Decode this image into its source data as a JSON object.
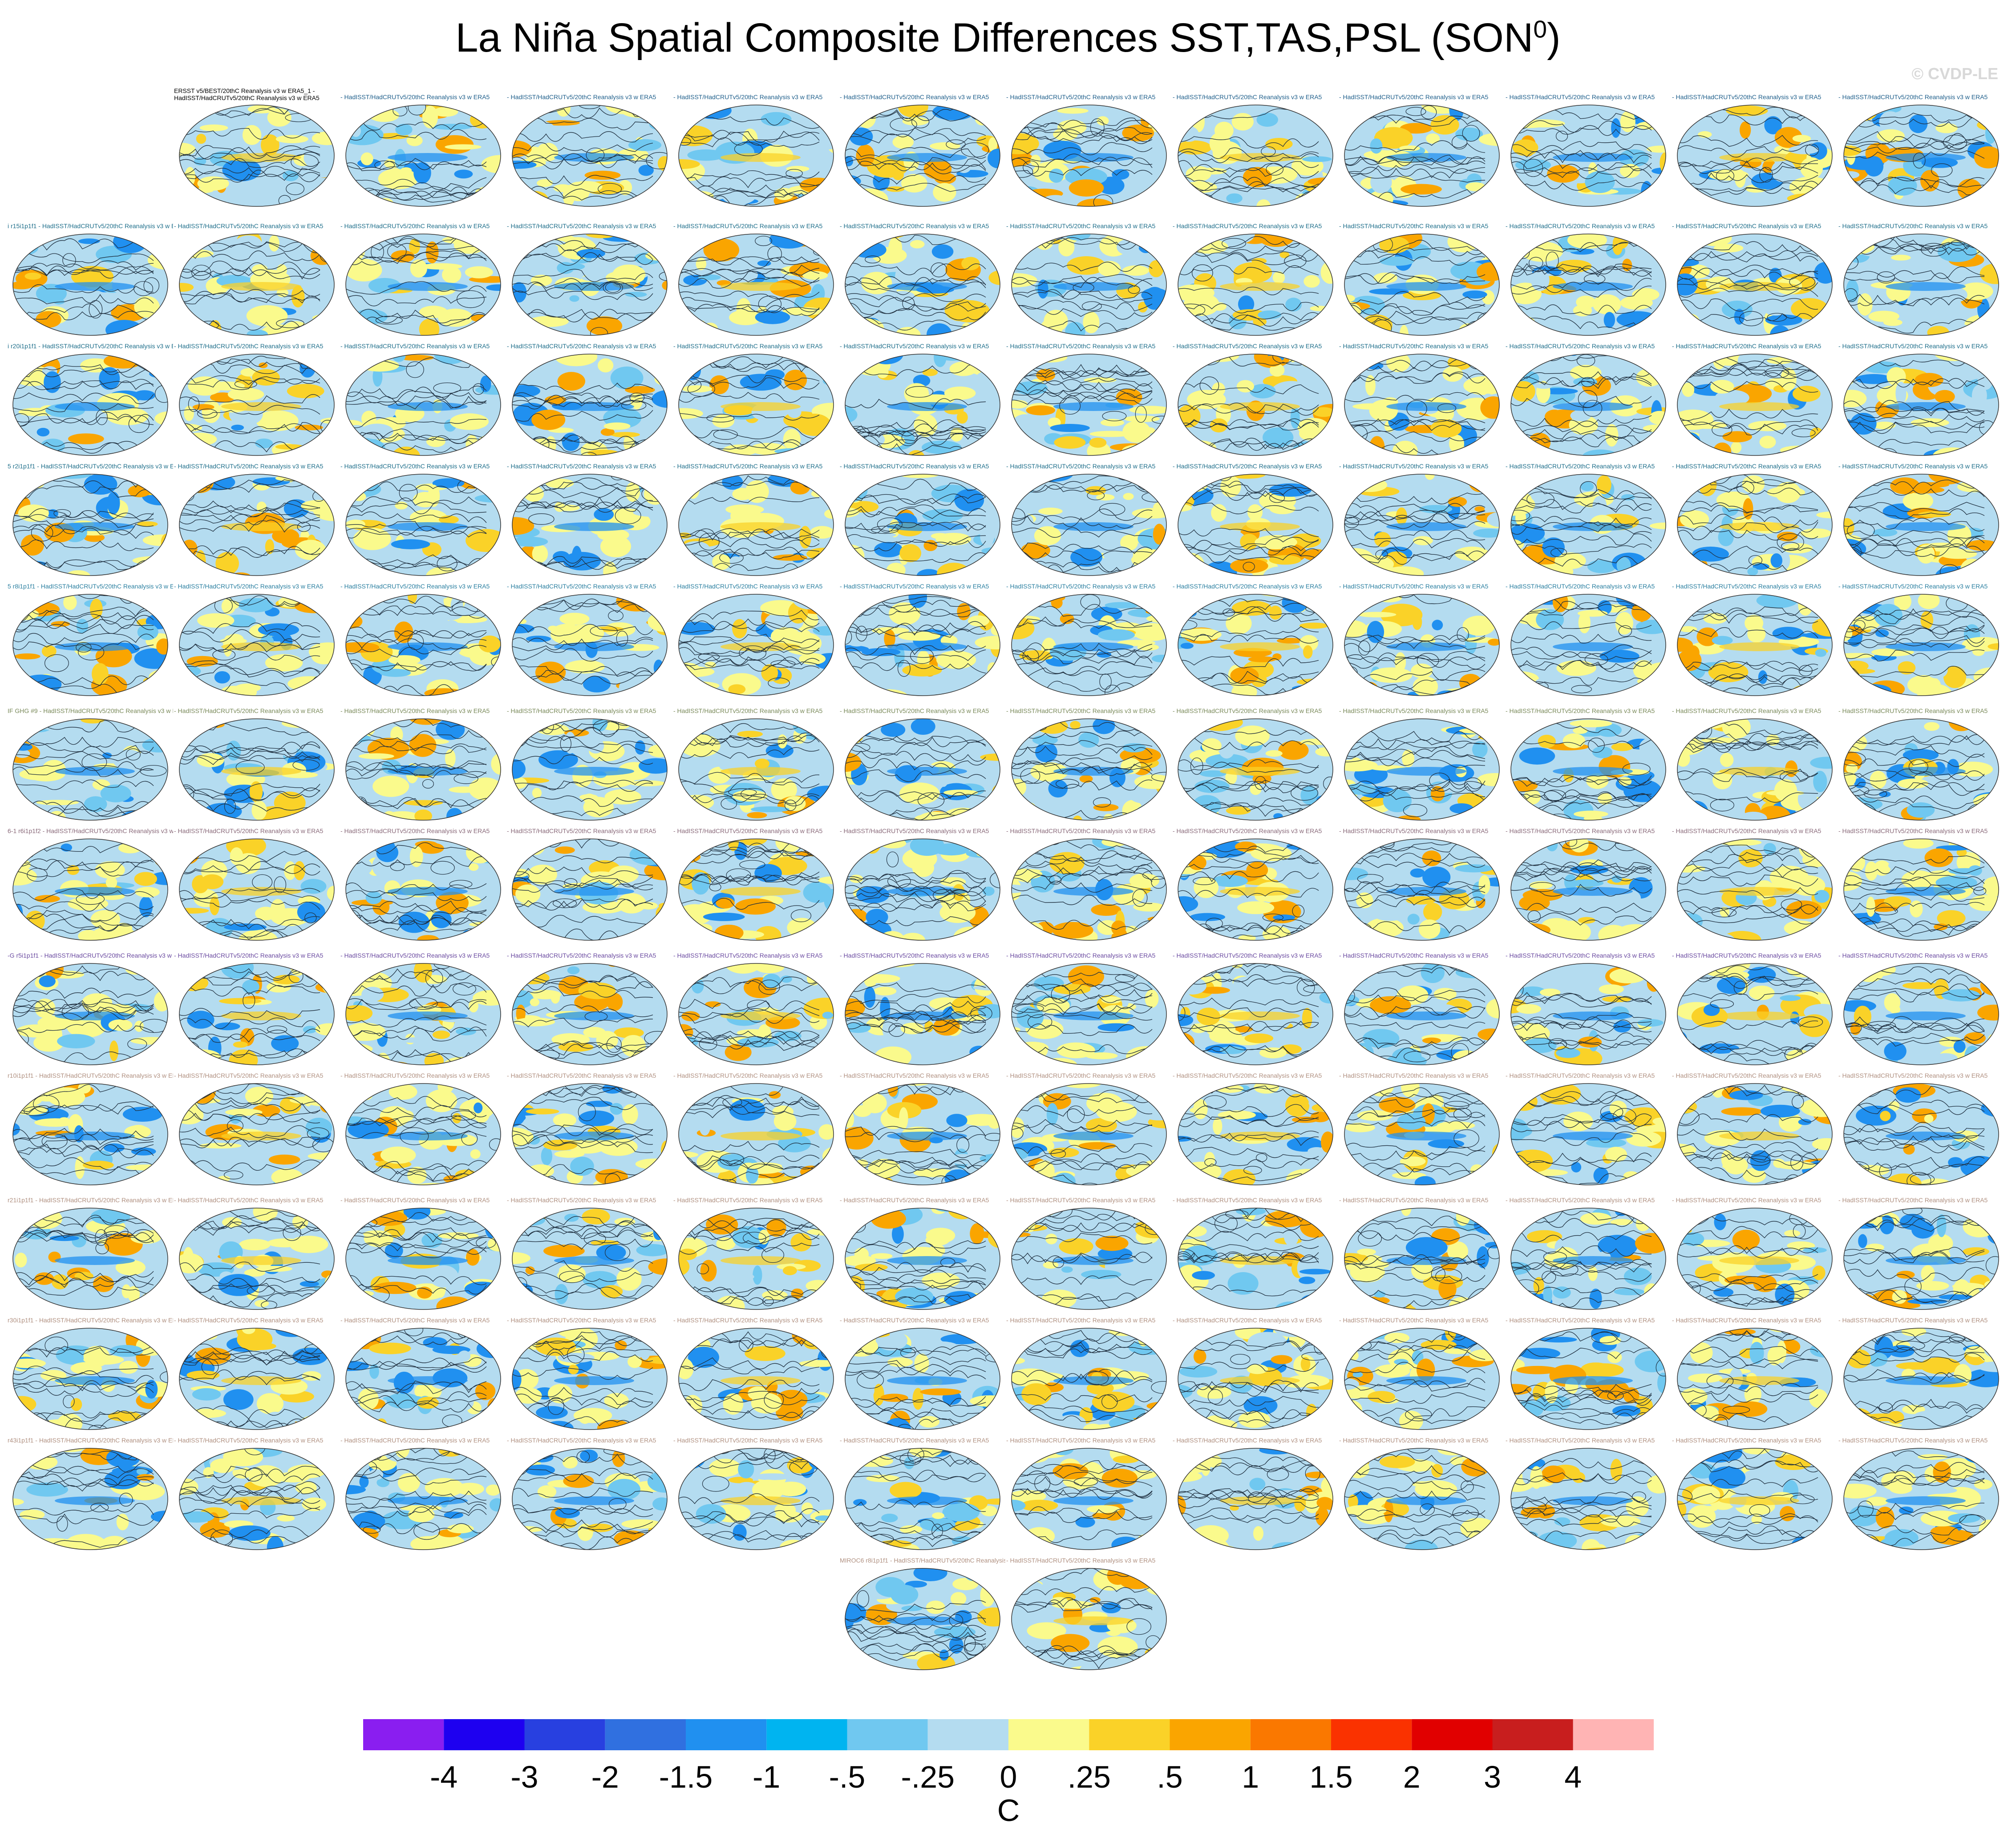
{
  "title": {
    "main": "La Niña Spatial Composite Differences SST,TAS,PSL (SON",
    "superscript": "0",
    "close": ")"
  },
  "watermark": "© CVDP-LE",
  "first_panel_title": "ERSST v5/BEST/20thC Reanalysis v3 w ERA5_1 - HadISST/HadCRUTv5/20thC Reanalysis v3 w ERA5",
  "row_labels": [
    "",
    "i r15i1p1f1 - HadISST/HadCRUTv5/20thC Reanalysis v3 w ERA5",
    "i r20i1p1f1 - HadISST/HadCRUTv5/20thC Reanalysis v3 w ERA5",
    "5 r2i1p1f1 - HadISST/HadCRUTv5/20thC Reanalysis v3 w ERA5",
    "5 r8i1p1f1 - HadISST/HadCRUTv5/20thC Reanalysis v3 w ERA5",
    "IF GHG #9 - HadISST/HadCRUTv5/20thC Reanalysis v3 w ERA5",
    "6-1 r6i1p1f2 - HadISST/HadCRUTv5/20thC Reanalysis v3 w ERA5",
    "-G r5i1p1f1 - HadISST/HadCRUTv5/20thC Reanalysis v3 w ERA5",
    "r10i1p1f1 - HadISST/HadCRUTv5/20thC Reanalysis v3 w ERA5",
    "r21i1p1f1 - HadISST/HadCRUTv5/20thC Reanalysis v3 w ERA5",
    "r30i1p1f1 - HadISST/HadCRUTv5/20thC Reanalysis v3 w ERA5",
    "r43i1p1f1 - HadISST/HadCRUTv5/20thC Reanalysis v3 w ERA5",
    "MIROC6 r8i1p1f1 - HadISST/HadCRUTv5/20thC Reanalysis v3 w ERA5"
  ],
  "panel_text": " - HadISST/HadCRUTv5/20thC Reanalysis v3 w ERA5",
  "row_colors": [
    "#1f5f8b",
    "#1f6f8b",
    "#1f6f8b",
    "#1f6f8b",
    "#2a7fa0",
    "#7a8a5a",
    "#8a6a7a",
    "#6a4aa0",
    "#b09080",
    "#b09080",
    "#b09080",
    "#b09080",
    "#b09080"
  ],
  "colorbar": {
    "colors": [
      "#8a1ef0",
      "#1e00f0",
      "#2840e0",
      "#3070e0",
      "#2090f0",
      "#00b4f0",
      "#70c8f0",
      "#b4dcf0",
      "#fafa8c",
      "#fad228",
      "#faa500",
      "#fa7800",
      "#fa3200",
      "#e10000",
      "#c81e1e",
      "#ffb4b4"
    ],
    "labels": [
      "-4",
      "-3",
      "-2",
      "-1.5",
      "-1",
      "-.5",
      "-.25",
      "0",
      ".25",
      ".5",
      "1",
      "1.5",
      "2",
      "3",
      "4"
    ],
    "units": "C"
  }
}
